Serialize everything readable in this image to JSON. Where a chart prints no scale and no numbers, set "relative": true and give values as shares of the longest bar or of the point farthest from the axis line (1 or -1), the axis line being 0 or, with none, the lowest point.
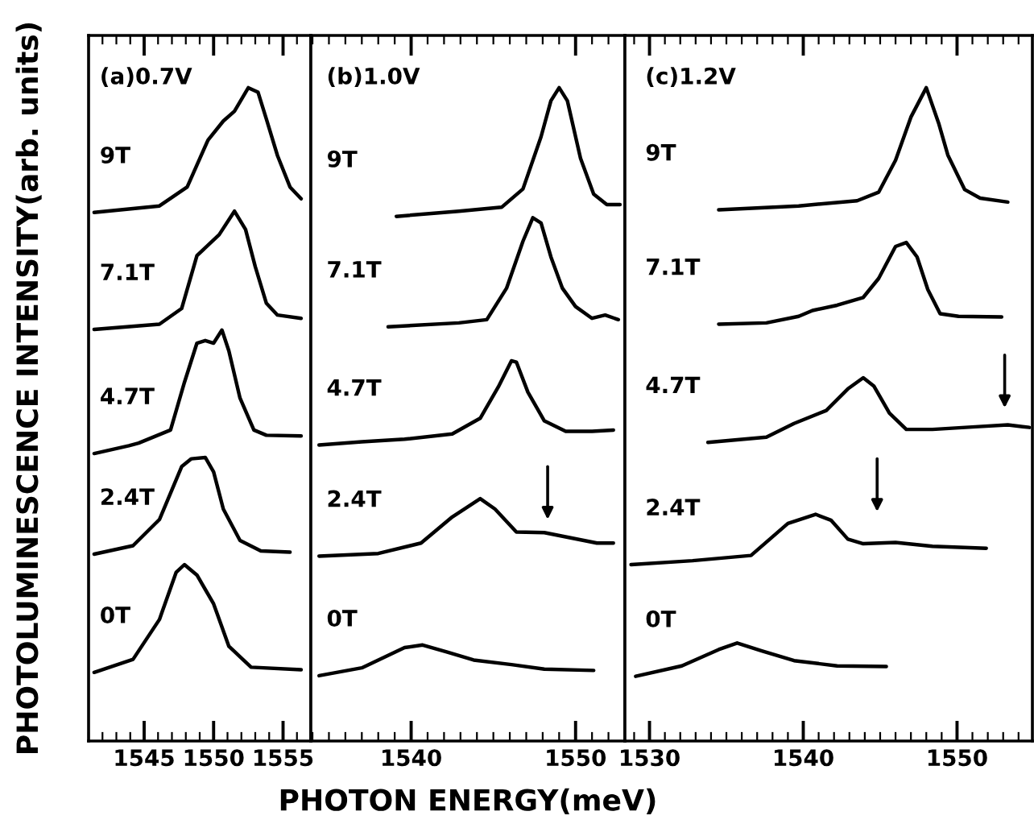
{
  "chart_data": [
    {
      "type": "line",
      "title": "(a)0.7V",
      "ylabel": "PHOTOLUMINESCENCE INTENSITY(arb. units)",
      "relative": true,
      "tick_labels": "x",
      "xlim": [
        1541.0,
        1557.0
      ],
      "xticks": [
        1545,
        1550,
        1555
      ],
      "series": [
        {
          "name": "9T",
          "color": "#000000",
          "x": [
            1541.4,
            1546.1,
            1548.1,
            1549.6,
            1550.7,
            1551.5,
            1552.5,
            1553.2,
            1553.8,
            1554.6,
            1555.5,
            1556.3
          ],
          "values": [
            0.809,
            0.819,
            0.848,
            0.92,
            0.949,
            0.964,
            1.0,
            0.993,
            0.952,
            0.896,
            0.848,
            0.83
          ]
        },
        {
          "name": "7.1T",
          "color": "#000000",
          "x": [
            1541.4,
            1546.1,
            1547.7,
            1548.8,
            1549.6,
            1550.4,
            1551.5,
            1552.3,
            1553.0,
            1553.8,
            1554.6,
            1556.3
          ],
          "values": [
            0.63,
            0.638,
            0.662,
            0.743,
            0.759,
            0.775,
            0.811,
            0.783,
            0.726,
            0.67,
            0.652,
            0.647
          ]
        },
        {
          "name": "4.7T",
          "color": "#000000",
          "x": [
            1541.4,
            1543.9,
            1544.6,
            1546.9,
            1547.9,
            1548.8,
            1549.4,
            1550.0,
            1550.6,
            1551.1,
            1551.9,
            1552.9,
            1553.8,
            1556.3
          ],
          "values": [
            0.44,
            0.452,
            0.456,
            0.476,
            0.549,
            0.609,
            0.613,
            0.609,
            0.629,
            0.597,
            0.525,
            0.476,
            0.468,
            0.467
          ]
        },
        {
          "name": "2.4T",
          "color": "#000000",
          "x": [
            1541.4,
            1544.2,
            1546.1,
            1547.7,
            1548.4,
            1549.4,
            1550.0,
            1550.7,
            1551.9,
            1553.4,
            1555.5
          ],
          "values": [
            0.286,
            0.299,
            0.339,
            0.42,
            0.432,
            0.434,
            0.412,
            0.355,
            0.307,
            0.291,
            0.289
          ]
        },
        {
          "name": "0T",
          "color": "#000000",
          "x": [
            1541.4,
            1544.2,
            1546.1,
            1547.3,
            1547.9,
            1548.8,
            1550.0,
            1551.1,
            1552.7,
            1556.3
          ],
          "values": [
            0.105,
            0.125,
            0.186,
            0.258,
            0.27,
            0.254,
            0.21,
            0.145,
            0.113,
            0.109
          ]
        }
      ]
    },
    {
      "type": "line",
      "title": "(b)1.0V",
      "xlabel": "PHOTON ENERGY(meV)",
      "relative": true,
      "tick_labels": "x",
      "xlim": [
        1533.9,
        1553.0
      ],
      "xticks": [
        1540,
        1550
      ],
      "series": [
        {
          "name": "9T",
          "color": "#000000",
          "x": [
            1539.1,
            1542.9,
            1545.5,
            1546.8,
            1547.9,
            1548.5,
            1549.0,
            1549.5,
            1550.3,
            1551.1,
            1551.9,
            1552.7
          ],
          "values": [
            0.803,
            0.811,
            0.817,
            0.845,
            0.925,
            0.98,
            1.0,
            0.98,
            0.892,
            0.837,
            0.821,
            0.821
          ]
        },
        {
          "name": "7.1T",
          "color": "#000000",
          "x": [
            1538.6,
            1542.9,
            1544.6,
            1545.8,
            1546.8,
            1547.4,
            1547.9,
            1548.5,
            1549.2,
            1550.0,
            1551.0,
            1551.8,
            1552.6
          ],
          "values": [
            0.634,
            0.64,
            0.645,
            0.693,
            0.765,
            0.801,
            0.793,
            0.741,
            0.693,
            0.665,
            0.647,
            0.652,
            0.645
          ]
        },
        {
          "name": "4.7T",
          "color": "#000000",
          "x": [
            1534.4,
            1537.0,
            1539.6,
            1542.5,
            1544.2,
            1545.3,
            1546.1,
            1546.4,
            1547.1,
            1548.1,
            1549.4,
            1551.0,
            1552.3
          ],
          "values": [
            0.453,
            0.458,
            0.462,
            0.47,
            0.494,
            0.542,
            0.582,
            0.58,
            0.534,
            0.49,
            0.474,
            0.474,
            0.476
          ]
        },
        {
          "name": "2.4T",
          "color": "#000000",
          "x": [
            1534.4,
            1538.0,
            1540.6,
            1542.5,
            1544.2,
            1545.1,
            1546.4,
            1548.1,
            1549.7,
            1551.3,
            1552.3
          ],
          "values": [
            0.283,
            0.287,
            0.303,
            0.343,
            0.371,
            0.355,
            0.32,
            0.319,
            0.311,
            0.303,
            0.303
          ]
        },
        {
          "name": "0T",
          "color": "#000000",
          "x": [
            1534.4,
            1537.0,
            1539.6,
            1540.7,
            1542.2,
            1543.8,
            1546.1,
            1548.1,
            1551.1
          ],
          "values": [
            0.1,
            0.112,
            0.143,
            0.147,
            0.136,
            0.124,
            0.117,
            0.11,
            0.108
          ]
        }
      ]
    },
    {
      "type": "line",
      "title": "(c)1.2V",
      "relative": true,
      "tick_labels": "x",
      "xlim": [
        1528.4,
        1554.9
      ],
      "xticks": [
        1530,
        1540,
        1550
      ],
      "series": [
        {
          "name": "9T",
          "color": "#000000",
          "x": [
            1534.5,
            1539.7,
            1543.5,
            1544.9,
            1546.0,
            1547.0,
            1548.0,
            1548.8,
            1549.4,
            1550.5,
            1551.5,
            1553.3
          ],
          "values": [
            0.813,
            0.819,
            0.827,
            0.84,
            0.889,
            0.955,
            1.0,
            0.946,
            0.897,
            0.844,
            0.831,
            0.825
          ]
        },
        {
          "name": "7.1T",
          "color": "#000000",
          "x": [
            1534.5,
            1537.6,
            1539.7,
            1540.6,
            1542.2,
            1543.9,
            1544.9,
            1546.0,
            1546.7,
            1547.4,
            1548.1,
            1548.9,
            1550.1,
            1552.9
          ],
          "values": [
            0.638,
            0.64,
            0.65,
            0.659,
            0.667,
            0.679,
            0.708,
            0.757,
            0.763,
            0.741,
            0.691,
            0.654,
            0.65,
            0.649
          ]
        },
        {
          "name": "4.7T",
          "color": "#000000",
          "x": [
            1533.8,
            1537.6,
            1539.4,
            1541.5,
            1542.9,
            1543.9,
            1544.6,
            1545.6,
            1546.7,
            1548.4,
            1551.2,
            1553.3,
            1554.7
          ],
          "values": [
            0.457,
            0.465,
            0.486,
            0.506,
            0.539,
            0.556,
            0.543,
            0.502,
            0.477,
            0.477,
            0.481,
            0.484,
            0.48
          ]
        },
        {
          "name": "2.4T",
          "color": "#000000",
          "x": [
            1528.8,
            1532.8,
            1536.6,
            1539.0,
            1540.8,
            1541.8,
            1542.9,
            1543.9,
            1546.0,
            1548.4,
            1551.9
          ],
          "values": [
            0.27,
            0.276,
            0.284,
            0.333,
            0.347,
            0.338,
            0.309,
            0.302,
            0.304,
            0.298,
            0.295
          ]
        },
        {
          "name": "0T",
          "color": "#000000",
          "x": [
            1529.1,
            1532.1,
            1534.5,
            1535.7,
            1537.3,
            1539.4,
            1542.2,
            1545.4
          ],
          "values": [
            0.099,
            0.115,
            0.14,
            0.15,
            0.138,
            0.123,
            0.115,
            0.114
          ]
        }
      ]
    }
  ]
}
